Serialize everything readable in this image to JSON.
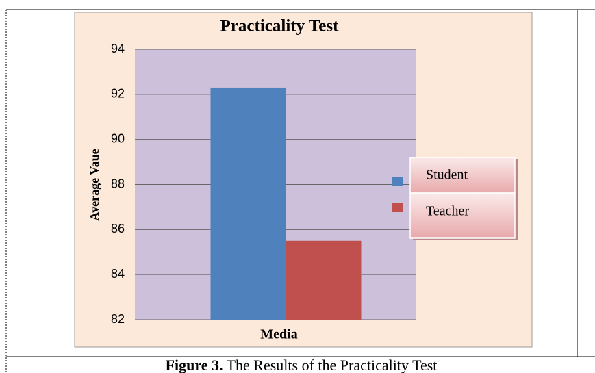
{
  "chart_data": {
    "type": "bar",
    "title": "Practicality Test",
    "categories": [
      "Media"
    ],
    "series": [
      {
        "name": "Student",
        "color": "#4f81bd",
        "values": [
          92.3
        ]
      },
      {
        "name": "Teacher",
        "color": "#c0504d",
        "values": [
          85.5
        ]
      }
    ],
    "ylabel": "Average Vaue",
    "ylim": [
      82,
      94
    ],
    "yticks": [
      82,
      84,
      86,
      88,
      90,
      92,
      94
    ],
    "grid": true,
    "legend": "right"
  },
  "caption": {
    "label": "Figure 3.",
    "text": "The Results of the Practicality Test"
  }
}
